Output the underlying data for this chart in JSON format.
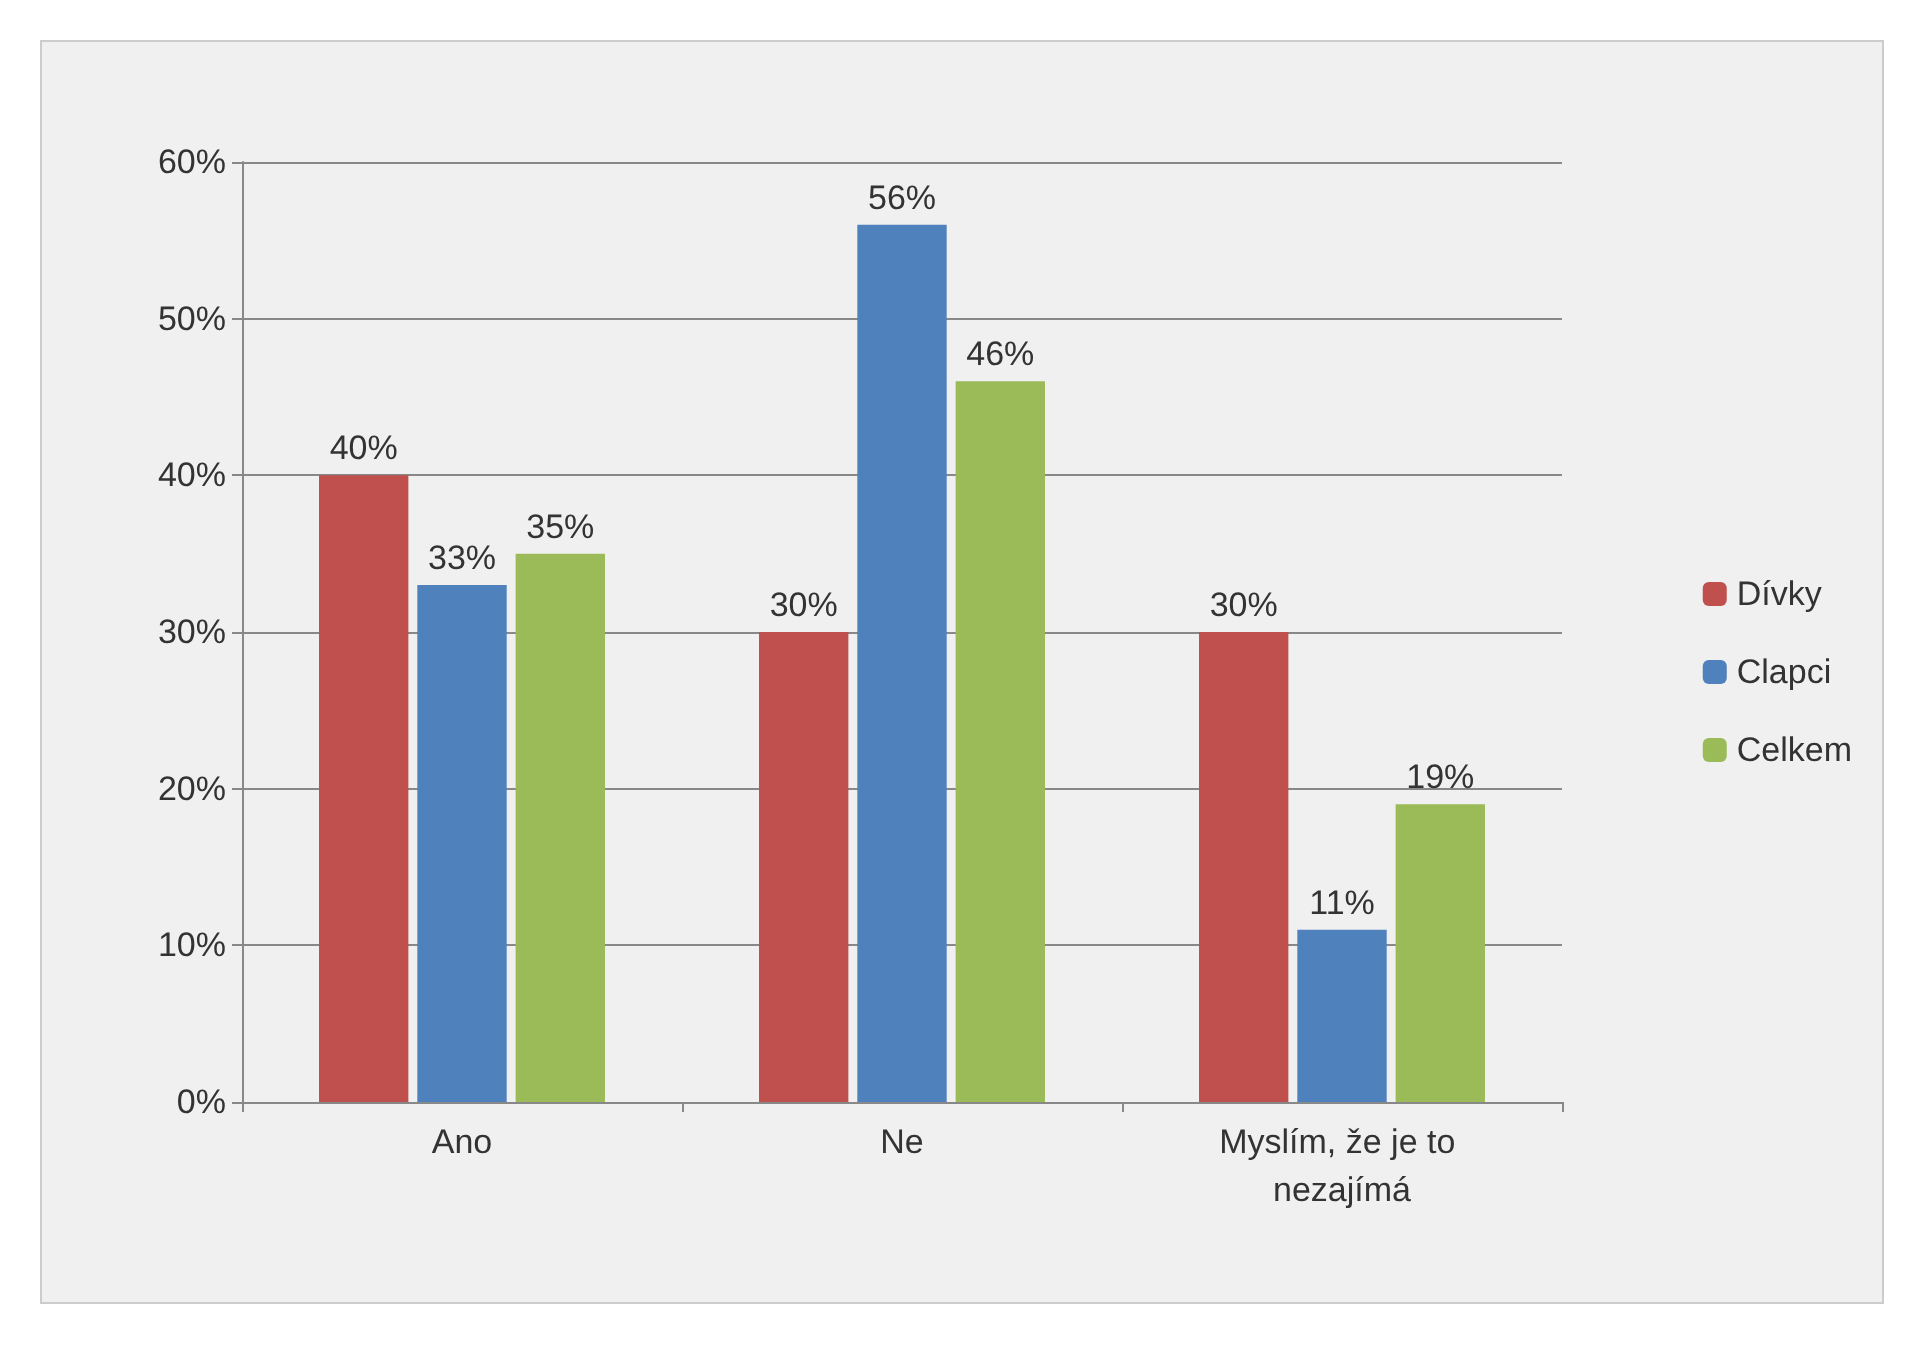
{
  "chart_data": {
    "type": "bar",
    "categories": [
      "Ano",
      "Ne",
      "Myslím, že je to nezajímá"
    ],
    "series": [
      {
        "name": "Dívky",
        "color": "#c0504d",
        "values": [
          40,
          30,
          30
        ],
        "value_labels": [
          "40%",
          "30%",
          "30%"
        ]
      },
      {
        "name": "Clapci",
        "color": "#4f81bd",
        "values": [
          33,
          56,
          11
        ],
        "value_labels": [
          "33%",
          "56%",
          "11%"
        ]
      },
      {
        "name": "Celkem",
        "color": "#9bbb59",
        "values": [
          35,
          46,
          19
        ],
        "value_labels": [
          "35%",
          "46%",
          "19%"
        ]
      }
    ],
    "ylim": [
      0,
      60
    ],
    "yticks": [
      {
        "value": 0,
        "label": "0%"
      },
      {
        "value": 10,
        "label": "10%"
      },
      {
        "value": 20,
        "label": "20%"
      },
      {
        "value": 30,
        "label": "30%"
      },
      {
        "value": 40,
        "label": "40%"
      },
      {
        "value": 50,
        "label": "50%"
      },
      {
        "value": 60,
        "label": "60%"
      }
    ],
    "grid": "y",
    "legend": "right"
  }
}
